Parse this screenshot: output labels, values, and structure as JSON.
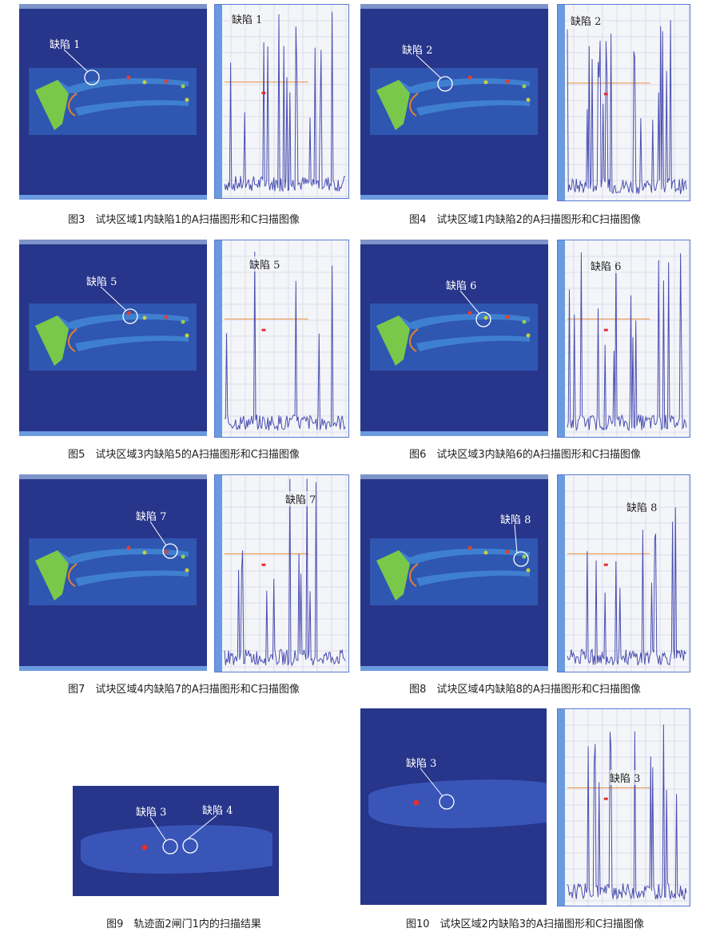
{
  "figures": [
    {
      "caption": "图3　试块区域1内缺陷1的A扫描图形和C扫描图像",
      "cscan_labels": [
        "缺陷 1"
      ],
      "ascan_label": "缺陷 1"
    },
    {
      "caption": "图4　试块区域1内缺陷2的A扫描图形和C扫描图像",
      "cscan_labels": [
        "缺陷 2"
      ],
      "ascan_label": "缺陷 2"
    },
    {
      "caption": "图5　试块区域3内缺陷5的A扫描图形和C扫描图像",
      "cscan_labels": [
        "缺陷 5"
      ],
      "ascan_label": "缺陷 5"
    },
    {
      "caption": "图6　试块区域3内缺陷6的A扫描图形和C扫描图像",
      "cscan_labels": [
        "缺陷 6"
      ],
      "ascan_label": "缺陷 6"
    },
    {
      "caption": "图7　试块区域4内缺陷7的A扫描图形和C扫描图像",
      "cscan_labels": [
        "缺陷 7"
      ],
      "ascan_label": "缺陷 7"
    },
    {
      "caption": "图8　试块区域4内缺陷8的A扫描图形和C扫描图像",
      "cscan_labels": [
        "缺陷 8"
      ],
      "ascan_label": "缺陷 8"
    },
    {
      "caption": "图9　轨迹面2闸门1内的扫描结果",
      "cscan_labels": [
        "缺陷 3",
        "缺陷 4"
      ]
    },
    {
      "caption": "图10　试块区域2内缺陷3的A扫描图形和C扫描图像",
      "cscan_labels": [
        "缺陷 3"
      ],
      "ascan_label": "缺陷 3"
    }
  ],
  "colors": {
    "cscan_bg": "#27358a",
    "ascan_trace": "#4a4fb0",
    "gate_line": "#e8903a",
    "defect_marker": "#e23030"
  }
}
